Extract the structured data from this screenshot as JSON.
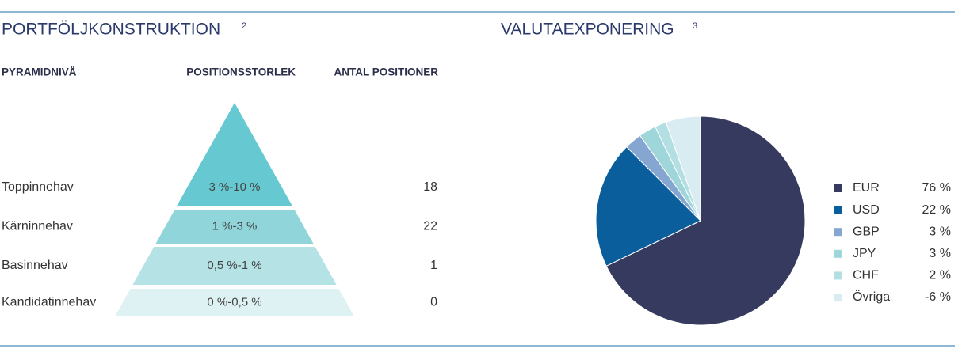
{
  "portfolio": {
    "title": "PORTFÖLJKONSTRUKTION",
    "footnote": "2",
    "headers": [
      "PYRAMIDNIVÅ",
      "POSITIONSSTORLEK",
      "ANTAL POSITIONER"
    ],
    "rows": [
      {
        "level": "Toppinnehav",
        "size": "3 %-10 %",
        "count": 18,
        "color": "#66c8d0"
      },
      {
        "level": "Kärninnehav",
        "size": "1 %-3 %",
        "count": 22,
        "color": "#8fd5da"
      },
      {
        "level": "Basinnehav",
        "size": "0,5 %-1 %",
        "count": 1,
        "color": "#b5e2e5"
      },
      {
        "level": "Kandidatinnehav",
        "size": "0 %-0,5 %",
        "count": 0,
        "color": "#dff2f3"
      }
    ]
  },
  "chart_data": {
    "type": "pie",
    "title": "VALUTAEXPONERING",
    "footnote": "3",
    "categories": [
      "EUR",
      "USD",
      "GBP",
      "JPY",
      "CHF",
      "Övriga"
    ],
    "values": [
      76,
      22,
      3,
      3,
      2,
      -6
    ],
    "value_labels": [
      "76 %",
      "22 %",
      "3 %",
      "3 %",
      "2 %",
      "-6 %"
    ],
    "colors": [
      "#363a5e",
      "#0a5e9c",
      "#84a6d0",
      "#9fd6da",
      "#b3dfe2",
      "#d9ecf2"
    ]
  }
}
